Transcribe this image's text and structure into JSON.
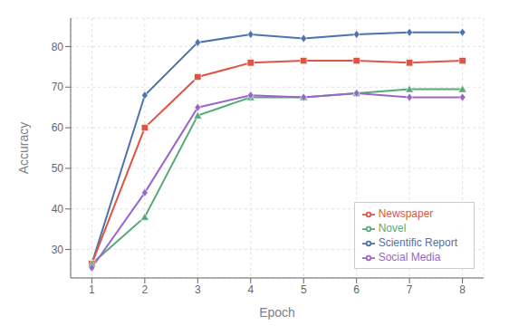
{
  "chart_data": {
    "type": "line",
    "x": [
      1,
      2,
      3,
      4,
      5,
      6,
      7,
      8
    ],
    "series": [
      {
        "name": "Scientific Report",
        "color": "#4c72b0",
        "marker": "diamond",
        "values": [
          26.5,
          68,
          81,
          83,
          82,
          83,
          83.5,
          83.5
        ]
      },
      {
        "name": "Newspaper",
        "color": "#dd5544",
        "marker": "square",
        "values": [
          26.5,
          60,
          72.5,
          76,
          76.5,
          76.5,
          76,
          76.5
        ]
      },
      {
        "name": "Novel",
        "color": "#55aa77",
        "marker": "triangle",
        "values": [
          26.5,
          38,
          63,
          67.5,
          67.5,
          68.5,
          69.5,
          69.5
        ]
      },
      {
        "name": "Social Media",
        "color": "#9966cc",
        "marker": "diamond",
        "values": [
          25.5,
          44,
          65,
          68,
          67.5,
          68.5,
          67.5,
          67.5
        ]
      }
    ],
    "xlabel": "Epoch",
    "ylabel": "Accuracy",
    "xlim": [
      0.6,
      8.4
    ],
    "ylim": [
      23,
      87
    ],
    "xticks": [
      1,
      2,
      3,
      4,
      5,
      6,
      7,
      8
    ],
    "yticks": [
      30,
      40,
      50,
      60,
      70,
      80
    ],
    "grid": true,
    "legend": "lower right"
  }
}
